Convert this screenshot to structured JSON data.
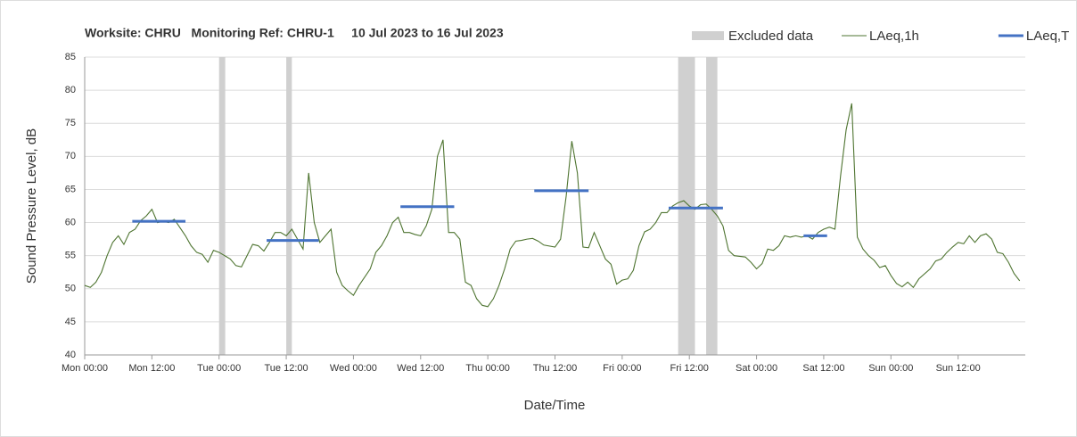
{
  "chart_data": {
    "type": "line",
    "title": "Worksite: CHRU   Monitoring Ref: CHRU-1     10 Jul 2023 to 16 Jul 2023",
    "xlabel": "Date/Time",
    "ylabel": "Sound Pressure Level, dB",
    "xlim": [
      0,
      168
    ],
    "xticks": [
      {
        "value": 0,
        "label": "Mon 00:00"
      },
      {
        "value": 12,
        "label": "Mon 12:00"
      },
      {
        "value": 24,
        "label": "Tue 00:00"
      },
      {
        "value": 36,
        "label": "Tue 12:00"
      },
      {
        "value": 48,
        "label": "Wed 00:00"
      },
      {
        "value": 60,
        "label": "Wed 12:00"
      },
      {
        "value": 72,
        "label": "Thu 00:00"
      },
      {
        "value": 84,
        "label": "Thu 12:00"
      },
      {
        "value": 96,
        "label": "Fri 00:00"
      },
      {
        "value": 108,
        "label": "Fri 12:00"
      },
      {
        "value": 120,
        "label": "Sat 00:00"
      },
      {
        "value": 132,
        "label": "Sat 12:00"
      },
      {
        "value": 144,
        "label": "Sun 00:00"
      },
      {
        "value": 156,
        "label": "Sun 12:00"
      }
    ],
    "ylim": [
      40,
      85
    ],
    "yticks": [
      40,
      45,
      50,
      55,
      60,
      65,
      70,
      75,
      80,
      85
    ],
    "grid": true,
    "excluded": {
      "name": "Excluded data",
      "color": "#d0d0d0",
      "ranges": [
        [
          24,
          25.1
        ],
        [
          36,
          37
        ],
        [
          106,
          109
        ],
        [
          111,
          113
        ]
      ]
    },
    "series": [
      {
        "name": "LAeq,1h",
        "color": "#4e7430",
        "x": [
          0,
          1,
          2,
          3,
          4,
          5,
          6,
          7,
          8,
          9,
          10,
          11,
          12,
          13,
          14,
          15,
          16,
          18,
          19,
          20,
          21,
          22,
          23,
          24,
          25,
          26,
          27,
          28,
          29,
          30,
          31,
          32,
          33,
          34,
          35,
          36,
          37,
          38,
          39,
          40,
          41,
          42,
          43,
          44,
          45,
          46,
          47,
          48,
          49,
          51,
          52,
          53,
          54,
          55,
          56,
          57,
          58,
          59,
          60,
          61,
          62,
          63,
          64,
          65,
          66,
          67,
          68,
          69,
          70,
          71,
          72,
          73,
          74,
          75,
          76,
          77,
          78,
          79,
          80,
          81,
          82,
          84,
          85,
          86,
          87,
          88,
          89,
          90,
          91,
          92,
          93,
          94,
          95,
          96,
          97,
          98,
          99,
          100,
          101,
          102,
          103,
          104,
          105,
          106,
          107,
          108,
          109,
          110,
          111,
          112,
          113,
          114,
          115,
          116,
          118,
          119,
          120,
          121,
          122,
          123,
          124,
          125,
          126,
          127,
          128,
          129,
          130,
          131,
          132,
          133,
          134,
          135,
          136,
          137,
          138,
          139,
          140,
          141,
          142,
          143,
          144,
          145,
          146,
          147,
          148,
          149,
          151,
          152,
          153,
          154,
          155,
          156,
          157,
          158,
          159,
          160,
          161,
          162,
          163,
          164,
          165,
          166,
          167
        ],
        "values": [
          50.5,
          50.2,
          51,
          52.5,
          55,
          57,
          58,
          56.7,
          58.5,
          59,
          60.3,
          61,
          62,
          60,
          60.2,
          60,
          60.5,
          58,
          56.5,
          55.5,
          55.2,
          54,
          55.8,
          55.5,
          55,
          54.5,
          53.5,
          53.3,
          55,
          56.7,
          56.5,
          55.7,
          57,
          58.5,
          58.5,
          58,
          59,
          57.5,
          56,
          67.5,
          60,
          57,
          58,
          59,
          52.5,
          50.5,
          49.7,
          49,
          50.5,
          53,
          55.5,
          56.5,
          58,
          60,
          60.8,
          58.5,
          58.5,
          58.2,
          58,
          59.5,
          62,
          70,
          72.5,
          58.5,
          58.5,
          57.5,
          51,
          50.5,
          48.5,
          47.5,
          47.3,
          48.5,
          50.5,
          53,
          56,
          57.2,
          57.3,
          57.5,
          57.6,
          57.2,
          56.6,
          56.3,
          57.5,
          64,
          72.3,
          67.5,
          56.3,
          56.2,
          58.5,
          56.5,
          54.5,
          53.7,
          50.7,
          51.3,
          51.5,
          52.8,
          56.5,
          58.6,
          59,
          60,
          61.5,
          61.5,
          62.5,
          63,
          63.3,
          62.5,
          62,
          62.7,
          62.8,
          62,
          61,
          59.5,
          55.8,
          55,
          54.8,
          54,
          53,
          53.8,
          56,
          55.8,
          56.5,
          58,
          57.8,
          58,
          57.8,
          58,
          57.5,
          58.5,
          59,
          59.3,
          59,
          67,
          74,
          78,
          57.8,
          56,
          55,
          54.3,
          53.2,
          53.5,
          52,
          50.8,
          50.3,
          51,
          50.2,
          51.5,
          53,
          54.2,
          54.5,
          55.5,
          56.3,
          57,
          56.8,
          58,
          57,
          58,
          58.3,
          57.5,
          55.5,
          55.3,
          54,
          52.3,
          51.2
        ]
      },
      {
        "name": "LAeq,T",
        "color": "#4472c4",
        "segments": [
          {
            "start": 8.5,
            "end": 18,
            "value": 60.2
          },
          {
            "start": 32.5,
            "end": 41.8,
            "value": 57.3
          },
          {
            "start": 56.4,
            "end": 66,
            "value": 62.4
          },
          {
            "start": 80.3,
            "end": 90,
            "value": 64.8
          },
          {
            "start": 104.3,
            "end": 114,
            "value": 62.2
          },
          {
            "start": 128.4,
            "end": 132.6,
            "value": 58
          }
        ]
      }
    ]
  }
}
